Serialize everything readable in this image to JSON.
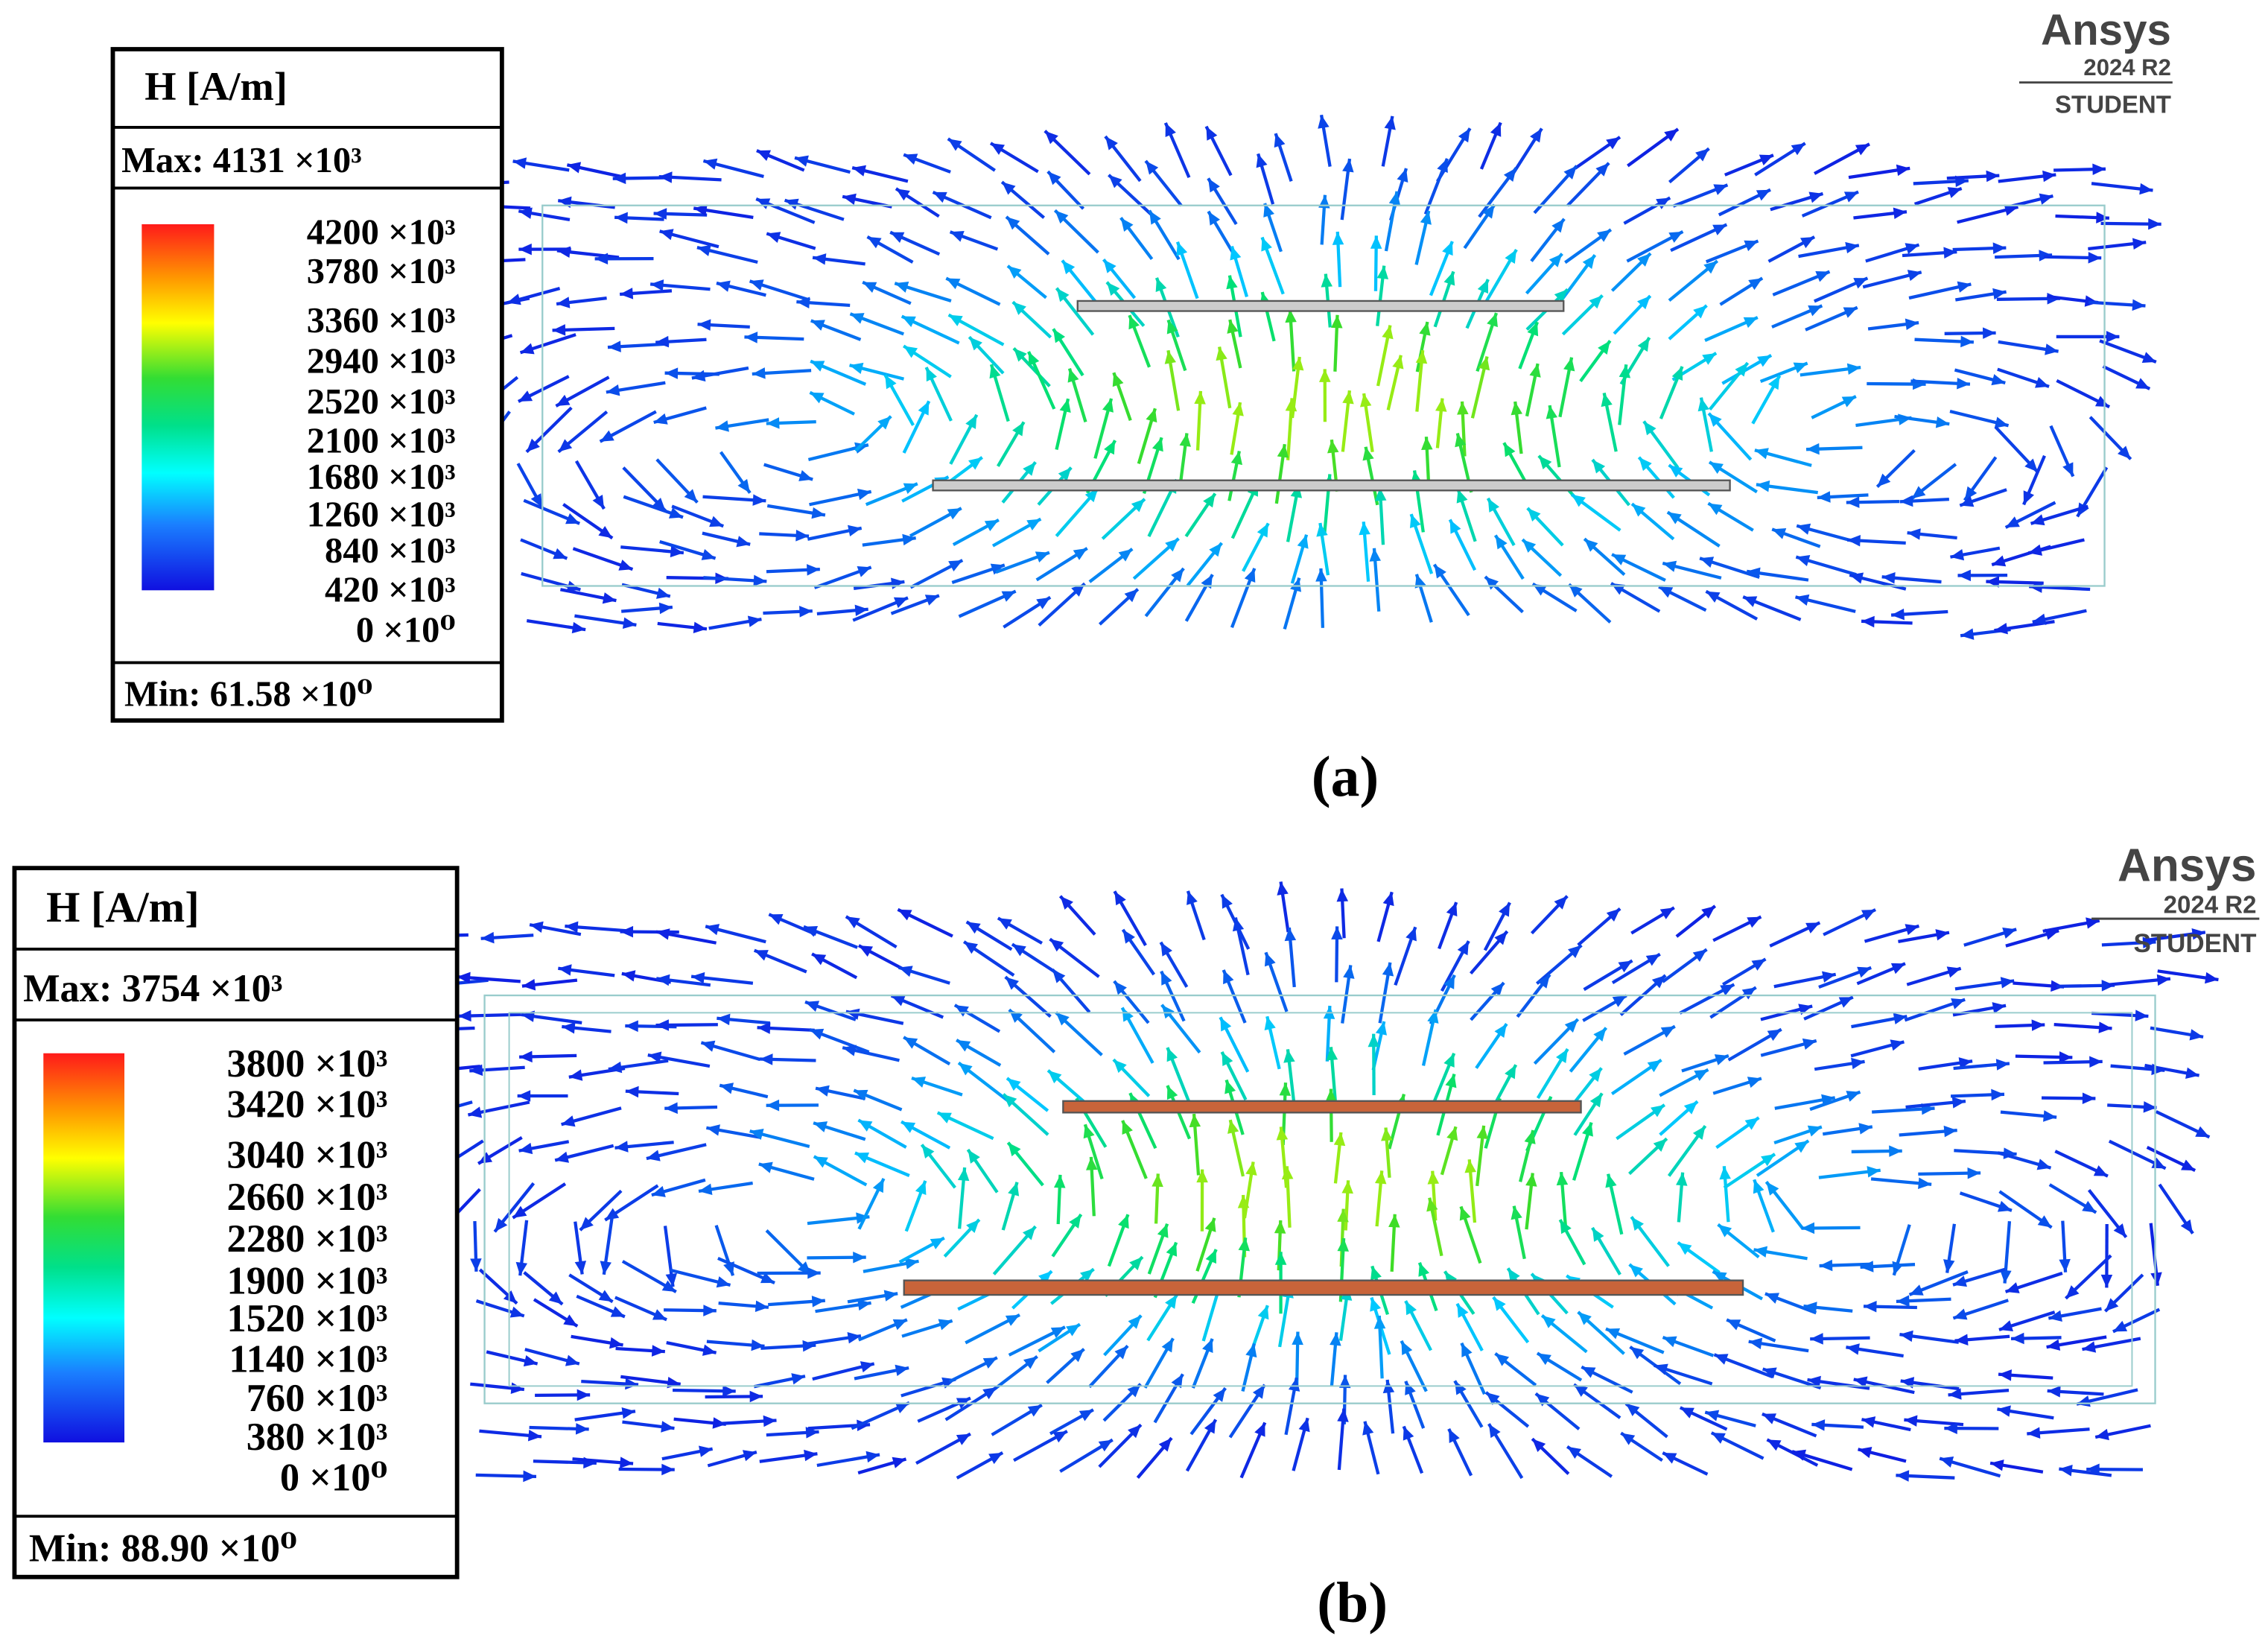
{
  "panels": [
    {
      "legend": {
        "title": "H [A/m]",
        "max": "Max: 4131 ×10³",
        "levels": [
          "4200 ×10³",
          "3780 ×10³",
          "3360 ×10³",
          "2940 ×10³",
          "2520 ×10³",
          "2100 ×10³",
          "1680 ×10³",
          "1260 ×10³",
          "840 ×10³",
          "420 ×10³",
          "0 ×10⁰"
        ],
        "min": "Min: 61.58 ×10⁰"
      },
      "logo": {
        "brand": "Ansys",
        "version": "2024 R2",
        "edition": "STUDENT"
      },
      "caption": "(a)"
    },
    {
      "legend": {
        "title": "H [A/m]",
        "max": "Max: 3754 ×10³",
        "levels": [
          "3800 ×10³",
          "3420 ×10³",
          "3040 ×10³",
          "2660 ×10³",
          "2280 ×10³",
          "1900 ×10³",
          "1520 ×10³",
          "1140 ×10³",
          "760 ×10³",
          "380 ×10³",
          "0 ×10⁰"
        ],
        "min": "Min: 88.90 ×10⁰"
      },
      "logo": {
        "brand": "Ansys",
        "version": "2024 R2",
        "edition": "STUDENT"
      },
      "caption": "(b)"
    }
  ]
}
